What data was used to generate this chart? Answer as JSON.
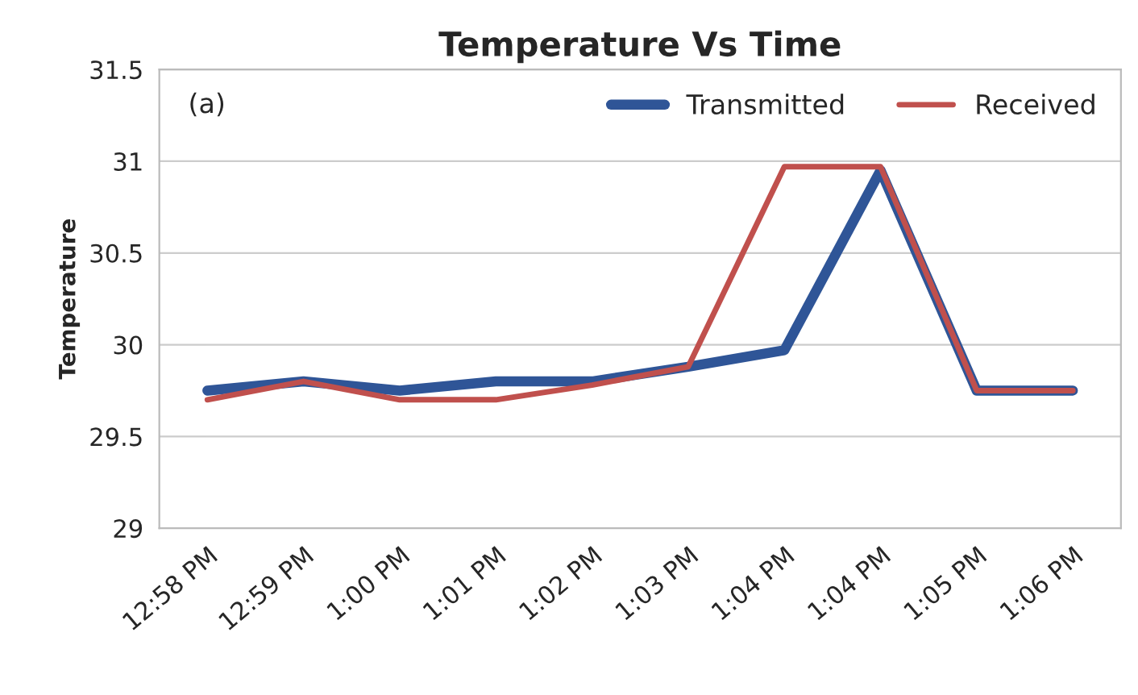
{
  "chart_data": {
    "type": "line",
    "title": "Temperature Vs Time",
    "ylabel": "Temperature",
    "categories": [
      "12:58 PM",
      "12:59 PM",
      "1:00 PM",
      "1:01 PM",
      "1:02 PM",
      "1:03 PM",
      "1:04 PM",
      "1:04 PM",
      "1:05 PM",
      "1:06 PM"
    ],
    "series": [
      {
        "name": "Transmitted",
        "color": "#2f5597",
        "values": [
          29.75,
          29.8,
          29.75,
          29.8,
          29.8,
          29.88,
          29.97,
          30.95,
          29.75,
          29.75
        ]
      },
      {
        "name": "Received",
        "color": "#c0504d",
        "values": [
          29.7,
          29.8,
          29.7,
          29.7,
          29.78,
          29.88,
          30.97,
          30.97,
          29.75,
          29.75
        ]
      }
    ],
    "ylim": [
      29,
      31.5
    ],
    "yticks": [
      29,
      29.5,
      30,
      30.5,
      31,
      31.5
    ],
    "grid": "y",
    "legend": "top right",
    "marker": "none",
    "line_style": "solid",
    "annotations": [
      "(a)"
    ]
  }
}
